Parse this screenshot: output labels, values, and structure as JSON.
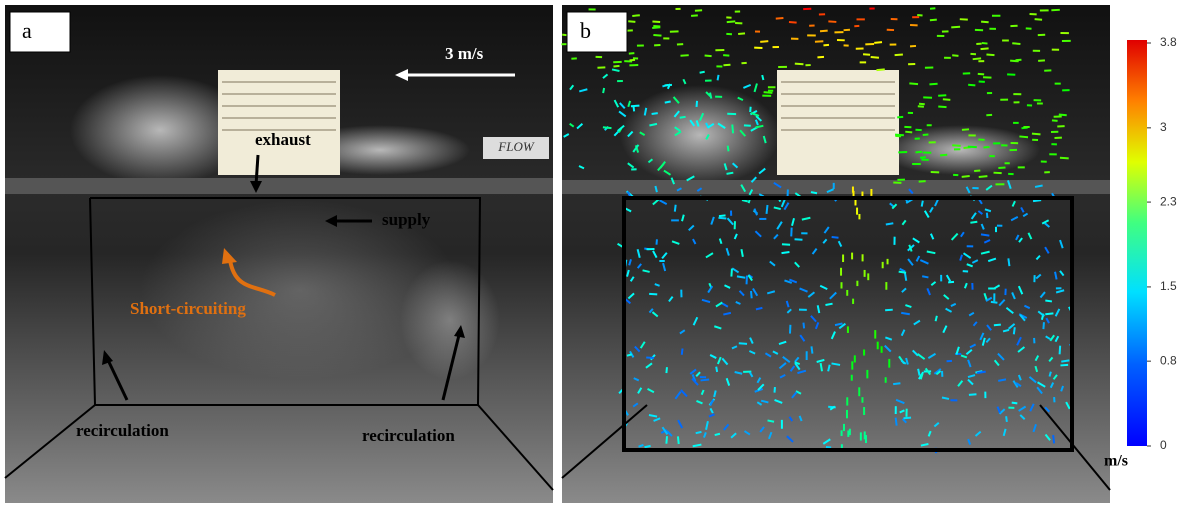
{
  "panels": [
    {
      "label": "a",
      "annotations": {
        "speed": "3 m/s",
        "exhaust": "exhaust",
        "supply": "supply",
        "short_circuiting": "Short-circuiting",
        "recirculation_left": "recirculation",
        "recirculation_right": "recirculation",
        "flow_sign": "FLOW"
      }
    },
    {
      "label": "b"
    }
  ],
  "colorbar": {
    "lim": [
      0,
      3.8
    ],
    "ticks": [
      0,
      0.8,
      1.5,
      2.3,
      3,
      3.8
    ],
    "unit": "m/s"
  }
}
